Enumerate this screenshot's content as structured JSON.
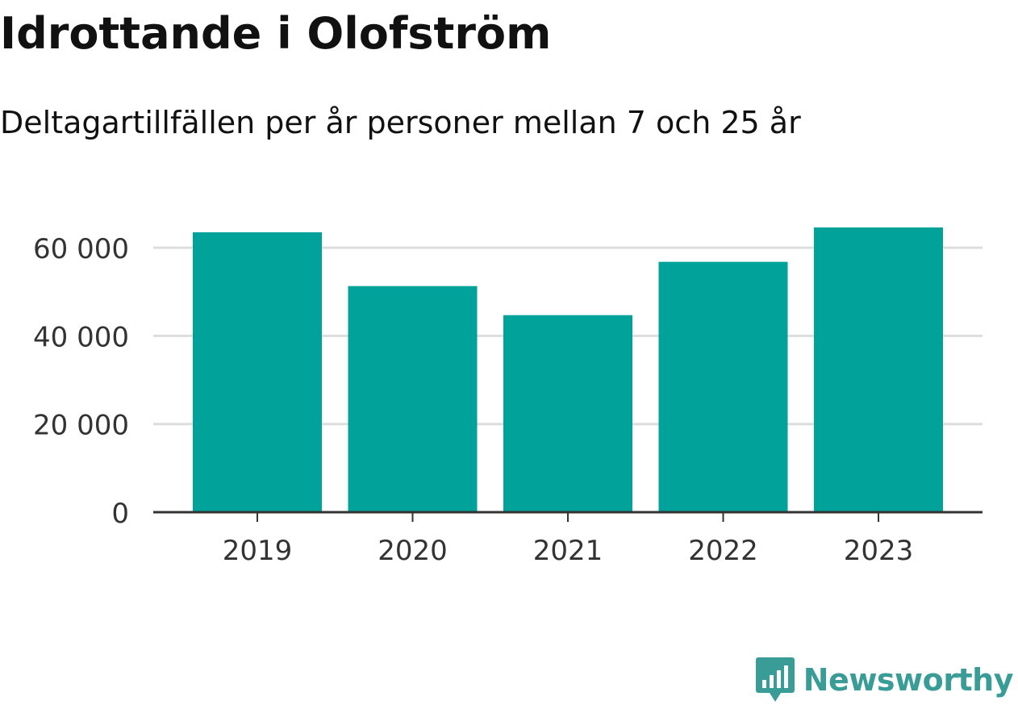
{
  "title": "Idrottande i Olofström",
  "subtitle": "Deltagartillfällen per år personer mellan 7 och 25 år",
  "brand": {
    "name": "Newsworthy",
    "color": "#3a9c96",
    "icon": "bar-chart-speech-bubble-icon"
  },
  "colors": {
    "bar": "#00a29a",
    "grid": "#dddddd",
    "axis": "#333333",
    "tick_text": "#333333"
  },
  "chart_data": {
    "type": "bar",
    "categories": [
      "2019",
      "2020",
      "2021",
      "2022",
      "2023"
    ],
    "values": [
      63500,
      51300,
      44700,
      56800,
      64600
    ],
    "y_ticks": [
      0,
      20000,
      40000,
      60000
    ],
    "y_tick_labels": [
      "0",
      "20 000",
      "40 000",
      "60 000"
    ],
    "ylim": [
      0,
      63500
    ],
    "xlabel": "",
    "ylabel": "",
    "grid": true,
    "legend": "none"
  }
}
